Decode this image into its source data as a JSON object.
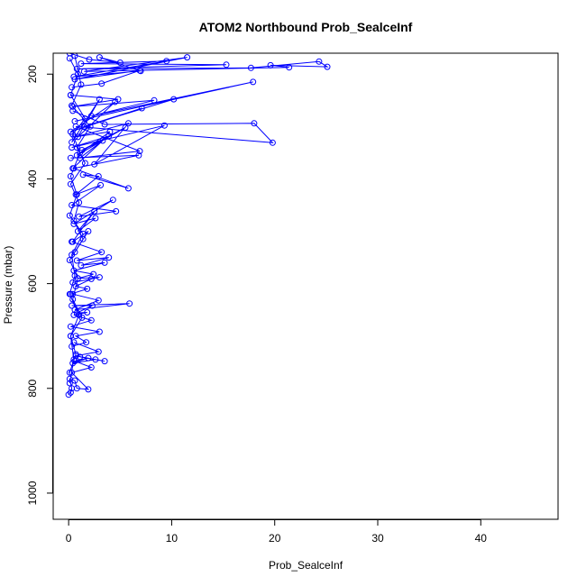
{
  "chart_data": {
    "type": "line",
    "title": "ATOM2 Northbound Prob_SealceInf",
    "xlabel": "Prob_SealceInf",
    "ylabel": "Pressure (mbar)",
    "xlim": [
      -1.5,
      47.5
    ],
    "ylim": [
      1050,
      160
    ],
    "y_reversed": true,
    "x_ticks": [
      0,
      10,
      20,
      30,
      40
    ],
    "y_ticks": [
      200,
      400,
      600,
      800,
      1000
    ],
    "grid": false,
    "legend": "none",
    "marker": "open-circle",
    "color": "#0000ff",
    "series": [
      {
        "x": [
          0.1,
          2.0,
          5.0,
          3.0,
          7.0,
          0.5,
          9.5,
          1.2,
          15.3,
          0.8,
          17.7,
          24.3,
          25.1,
          19.6,
          21.4,
          1.5,
          11.5,
          0.6,
          6.9,
          3.2,
          0.3
        ],
        "y": [
          160,
          172,
          178,
          168,
          194,
          205,
          175,
          180,
          182,
          190,
          188,
          176,
          186,
          183,
          187,
          195,
          168,
          210,
          193,
          218,
          225
        ]
      },
      {
        "x": [
          0.2,
          4.8,
          0.4,
          8.3,
          2.2,
          17.9,
          0.6,
          10.2,
          1.5,
          7.1,
          0.2,
          4.5,
          0.9,
          3.0,
          0.3
        ],
        "y": [
          240,
          248,
          262,
          250,
          280,
          215,
          290,
          248,
          300,
          265,
          310,
          253,
          320,
          248,
          330
        ]
      },
      {
        "x": [
          0.4,
          3.5,
          18.0,
          19.8,
          0.7,
          6.9,
          1.1,
          3.9,
          0.3,
          9.3,
          2.5,
          5.8,
          0.6,
          4.0,
          0.8,
          5.5,
          1.3,
          3.3,
          0.4
        ],
        "y": [
          270,
          296,
          294,
          331,
          300,
          347,
          360,
          318,
          340,
          298,
          372,
          294,
          320,
          310,
          355,
          302,
          345,
          327,
          380
        ]
      },
      {
        "x": [
          0.2,
          6.8,
          0.5,
          5.8,
          1.4,
          2.9,
          0.7,
          3.1,
          0.3,
          4.6,
          1.0,
          4.3,
          0.5,
          2.6,
          0.9,
          2.5,
          0.4,
          1.9,
          0.6
        ],
        "y": [
          360,
          355,
          380,
          418,
          392,
          395,
          430,
          412,
          450,
          462,
          472,
          440,
          486,
          475,
          500,
          462,
          520,
          500,
          540
        ]
      },
      {
        "x": [
          0.3,
          3.2,
          0.8,
          3.9,
          1.2,
          3.5,
          0.5,
          2.4,
          0.9,
          3.0,
          0.4,
          2.2,
          0.7,
          1.8,
          0.2
        ],
        "y": [
          520,
          540,
          556,
          550,
          565,
          560,
          575,
          582,
          590,
          588,
          598,
          591,
          605,
          610,
          620
        ]
      },
      {
        "x": [
          0.4,
          2.9,
          0.6,
          5.9,
          0.3,
          2.3,
          0.8,
          1.8,
          0.5,
          2.2,
          0.2,
          3.0,
          0.7,
          1.7,
          0.3
        ],
        "y": [
          620,
          632,
          650,
          638,
          642,
          642,
          656,
          655,
          660,
          670,
          682,
          692,
          700,
          712,
          720
        ]
      },
      {
        "x": [
          0.5,
          2.9,
          0.7,
          3.5,
          1.1,
          2.6,
          0.4,
          1.9,
          0.6,
          2.2,
          0.3,
          1.9,
          0.8,
          0.6,
          0.1,
          0.3,
          0.2,
          0.0
        ],
        "y": [
          712,
          730,
          738,
          748,
          740,
          745,
          752,
          742,
          748,
          760,
          770,
          802,
          800,
          785,
          782,
          800,
          808,
          812
        ]
      },
      {
        "x": [
          0.6,
          1.2,
          0.3,
          2.1,
          0.8,
          1.6,
          0.2,
          1.0,
          0.5,
          1.4,
          0.1,
          0.9,
          0.4,
          1.3,
          0.2,
          0.7,
          0.1
        ],
        "y": [
          165,
          220,
          260,
          300,
          340,
          370,
          410,
          445,
          480,
          515,
          555,
          590,
          630,
          665,
          700,
          735,
          770
        ]
      },
      {
        "x": [
          0.1,
          0.9,
          0.2,
          1.6,
          0.4,
          1.1,
          0.2,
          0.8,
          0.1,
          1.4,
          0.3,
          0.6,
          0.1,
          1.0,
          0.2,
          0.5,
          0.1
        ],
        "y": [
          170,
          200,
          240,
          285,
          315,
          350,
          395,
          430,
          470,
          505,
          545,
          585,
          620,
          660,
          700,
          745,
          790
        ]
      }
    ]
  }
}
